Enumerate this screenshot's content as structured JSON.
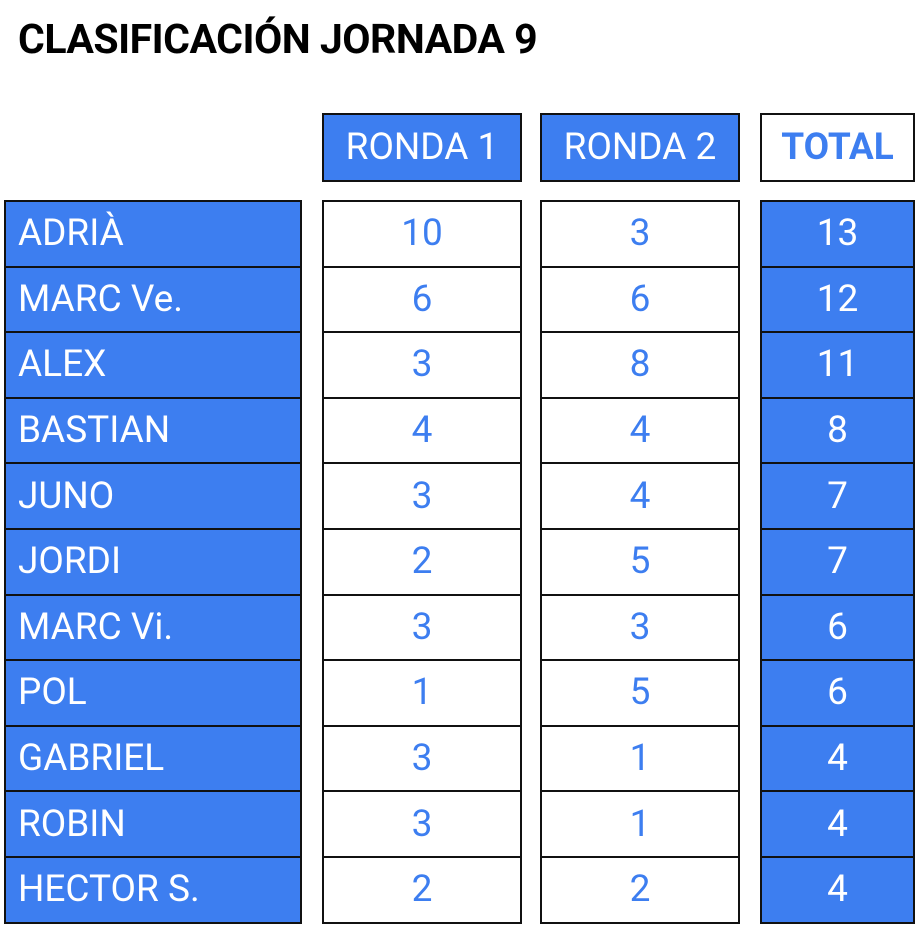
{
  "title": "CLASIFICACIÓN JORNADA 9",
  "table": {
    "header": [
      "RONDA 1",
      "RONDA 2",
      "TOTAL"
    ],
    "rows": [
      [
        "ADRIÀ",
        10,
        3,
        13
      ],
      [
        "MARC Ve.",
        6,
        6,
        12
      ],
      [
        "ALEX",
        3,
        8,
        11
      ],
      [
        "BASTIAN",
        4,
        4,
        8
      ],
      [
        "JUNO",
        3,
        4,
        7
      ],
      [
        "JORDI",
        2,
        5,
        7
      ],
      [
        "MARC Vi.",
        3,
        3,
        6
      ],
      [
        "POL",
        1,
        5,
        6
      ],
      [
        "GABRIEL",
        3,
        1,
        4
      ],
      [
        "ROBIN",
        3,
        1,
        4
      ],
      [
        "HECTOR S.",
        2,
        2,
        4
      ]
    ]
  }
}
